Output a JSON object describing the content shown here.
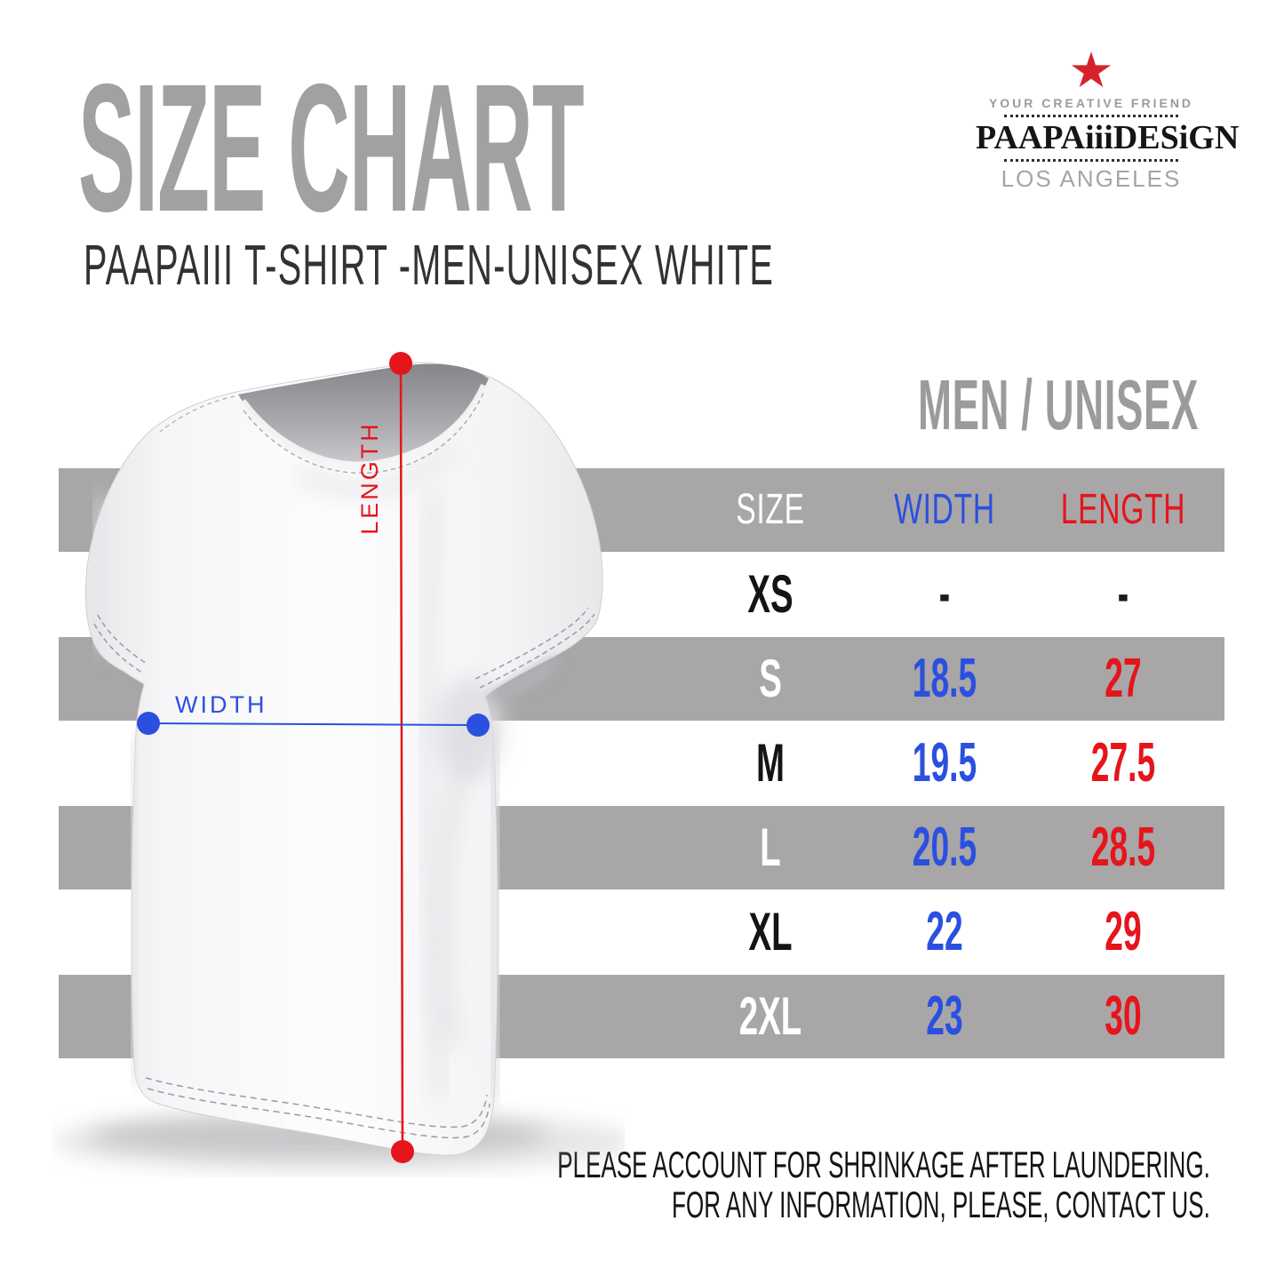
{
  "header": {
    "title": "SIZE CHART",
    "subtitle": "PAAPAIII T-SHIRT -MEN-UNISEX WHITE"
  },
  "logo": {
    "tagline": "YOUR CREATIVE FRIEND",
    "brand": "PAAPAiiiDESiGN",
    "city": "LOS ANGELES",
    "star_color": "#d8222b"
  },
  "diagram": {
    "width_label": "WIDTH",
    "length_label": "LENGTH",
    "width_color": "#2b50e0",
    "length_color": "#e5151b"
  },
  "table": {
    "group_title": "MEN / UNISEX",
    "columns": [
      "SIZE",
      "WIDTH",
      "LENGTH"
    ],
    "column_colors": [
      "#ffffff",
      "#2b50e0",
      "#e5151b"
    ],
    "size_color_on_band": "#ffffff",
    "size_color_on_white": "#141414",
    "dash_color": "#1a1a1a",
    "band_color": "#a8a6a7",
    "rows": [
      {
        "size": "XS",
        "width": "-",
        "length": "-"
      },
      {
        "size": "S",
        "width": "18.5",
        "length": "27"
      },
      {
        "size": "M",
        "width": "19.5",
        "length": "27.5"
      },
      {
        "size": "L",
        "width": "20.5",
        "length": "28.5"
      },
      {
        "size": "XL",
        "width": "22",
        "length": "29"
      },
      {
        "size": "2XL",
        "width": "23",
        "length": "30"
      }
    ]
  },
  "footer": {
    "line1": "PLEASE ACCOUNT FOR SHRINKAGE AFTER LAUNDERING.",
    "line2": "FOR ANY INFORMATION, PLEASE, CONTACT US."
  }
}
